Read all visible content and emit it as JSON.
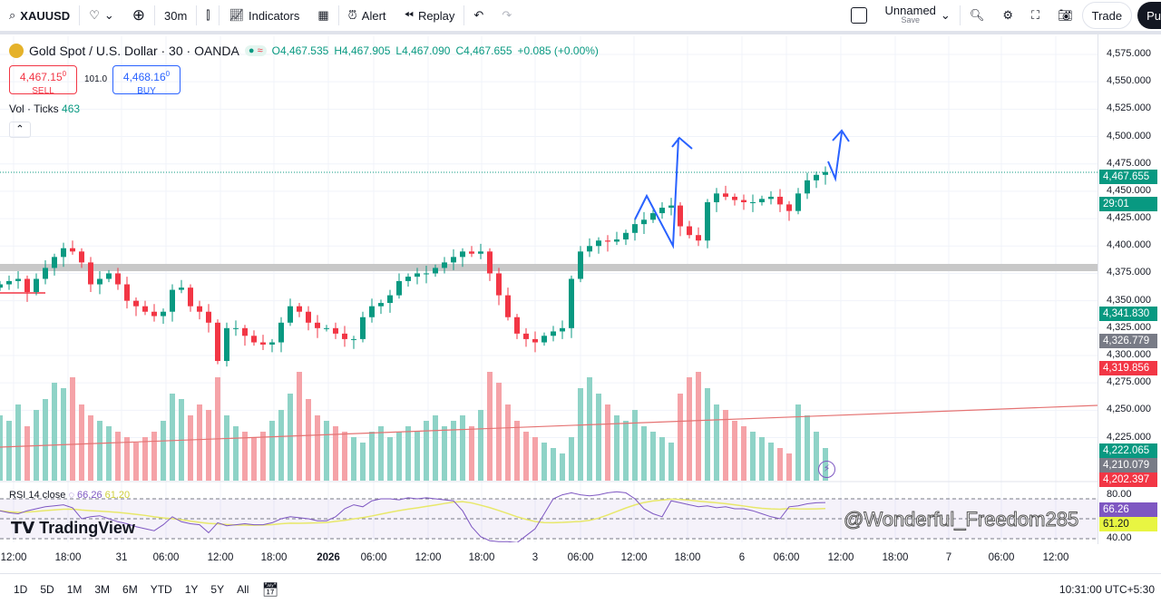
{
  "toolbar": {
    "symbol": "XAUUSD",
    "interval": "30m",
    "indicators": "Indicators",
    "alert": "Alert",
    "replay": "Replay",
    "layout_name": "Unnamed",
    "layout_sub": "Save",
    "trade": "Trade",
    "publish": "Pu"
  },
  "legend": {
    "title": "Gold Spot / U.S. Dollar · 30 · OANDA",
    "o": "O4,467.535",
    "h": "H4,467.905",
    "l": "L4,467.090",
    "c": "C4,467.655",
    "chg": "+0.085 (+0.00%)"
  },
  "trade": {
    "sell_price": "4,467.15",
    "sell_sup": "0",
    "sell": "SELL",
    "spread": "101.0",
    "buy_price": "4,468.16",
    "buy_sup": "0",
    "buy": "BUY"
  },
  "vol": {
    "label": "Vol · Ticks",
    "value": "463"
  },
  "rsi": {
    "label": "RSI 14 close",
    "value": "66.26",
    "ma": "61.20",
    "axis": [
      "80.00",
      "40.00"
    ]
  },
  "price_axis": [
    "4,575.000",
    "4,550.000",
    "4,525.000",
    "4,500.000",
    "4,475.000",
    "4,450.000",
    "4,425.000",
    "4,400.000",
    "4,375.000",
    "4,350.000",
    "4,325.000",
    "4,300.000",
    "4,275.000",
    "4,250.000",
    "4,225.000"
  ],
  "price_tags": {
    "last": "4,467.655",
    "countdown": "29:01",
    "t1": "4,341.830",
    "t2": "4,326.779",
    "t3": "4,319.856",
    "v1": "4,222.065",
    "v2": "4,210.079",
    "v3": "4,202.397"
  },
  "time_axis": [
    "12:00",
    "18:00",
    "31",
    "06:00",
    "12:00",
    "18:00",
    "2026",
    "06:00",
    "12:00",
    "18:00",
    "3",
    "06:00",
    "12:00",
    "18:00",
    "6",
    "06:00",
    "12:00",
    "18:00",
    "7",
    "06:00",
    "12:00"
  ],
  "ranges": [
    "1D",
    "5D",
    "1M",
    "3M",
    "6M",
    "YTD",
    "1Y",
    "5Y",
    "All"
  ],
  "clock": "10:31:00 UTC+5:30",
  "watermark": "@Wonderful_Freedom285",
  "logo": "TradingView",
  "colors": {
    "up": "#089981",
    "down": "#f23645",
    "drawing": "#2962ff",
    "rsi": "#7e57c2",
    "rsi_ma": "#e8e86a"
  },
  "chart_data": {
    "type": "candlestick",
    "closes": [
      4365,
      4368,
      4370,
      4358,
      4370,
      4380,
      4390,
      4398,
      4395,
      4385,
      4365,
      4370,
      4375,
      4365,
      4350,
      4345,
      4340,
      4336,
      4340,
      4360,
      4362,
      4345,
      4340,
      4330,
      4295,
      4325,
      4325,
      4318,
      4312,
      4310,
      4312,
      4330,
      4345,
      4340,
      4330,
      4325,
      4325,
      4320,
      4315,
      4315,
      4335,
      4345,
      4348,
      4355,
      4368,
      4372,
      4375,
      4375,
      4380,
      4385,
      4390,
      4395,
      4393,
      4395,
      4375,
      4355,
      4335,
      4320,
      4315,
      4312,
      4318,
      4322,
      4325,
      4370,
      4395,
      4400,
      4405,
      4404,
      4406,
      4412,
      4420,
      4424,
      4430,
      4435,
      4437,
      4418,
      4410,
      4405,
      4440,
      4448,
      4445,
      4442,
      4440,
      4440,
      4443,
      4445,
      4438,
      4432,
      4448,
      4460,
      4465,
      4467.655
    ],
    "volume": [
      60,
      55,
      70,
      50,
      65,
      75,
      90,
      85,
      95,
      70,
      60,
      55,
      50,
      45,
      40,
      35,
      40,
      45,
      55,
      80,
      75,
      60,
      70,
      65,
      95,
      60,
      50,
      45,
      40,
      45,
      55,
      65,
      80,
      100,
      75,
      60,
      55,
      50,
      45,
      40,
      35,
      45,
      50,
      40,
      45,
      50,
      45,
      55,
      60,
      50,
      55,
      60,
      50,
      65,
      100,
      90,
      70,
      55,
      45,
      40,
      35,
      30,
      25,
      40,
      85,
      95,
      80,
      70,
      60,
      55,
      65,
      50,
      45,
      40,
      35,
      80,
      95,
      100,
      85,
      70,
      65,
      55,
      50,
      45,
      40,
      35,
      30,
      25,
      70,
      60,
      45,
      30
    ],
    "rsi": [
      58,
      56,
      55,
      58,
      60,
      62,
      63,
      64,
      61,
      50,
      52,
      53,
      50,
      47,
      45,
      42,
      40,
      38,
      44,
      52,
      47,
      45,
      44,
      36,
      46,
      43,
      44,
      45,
      44,
      44,
      46,
      50,
      52,
      51,
      50,
      48,
      48,
      52,
      60,
      64,
      62,
      68,
      70,
      70,
      69,
      71,
      70,
      71,
      70,
      69,
      68,
      58,
      42,
      32,
      28,
      27,
      27,
      26,
      33,
      40,
      55,
      70,
      74,
      76,
      74,
      73,
      74,
      76,
      77,
      76,
      70,
      60,
      55,
      52,
      68,
      66,
      64,
      62,
      63,
      61,
      62,
      60,
      60,
      58,
      55,
      52,
      50,
      62,
      63,
      65,
      66,
      66.26
    ],
    "price_range": [
      4200,
      4590
    ]
  }
}
